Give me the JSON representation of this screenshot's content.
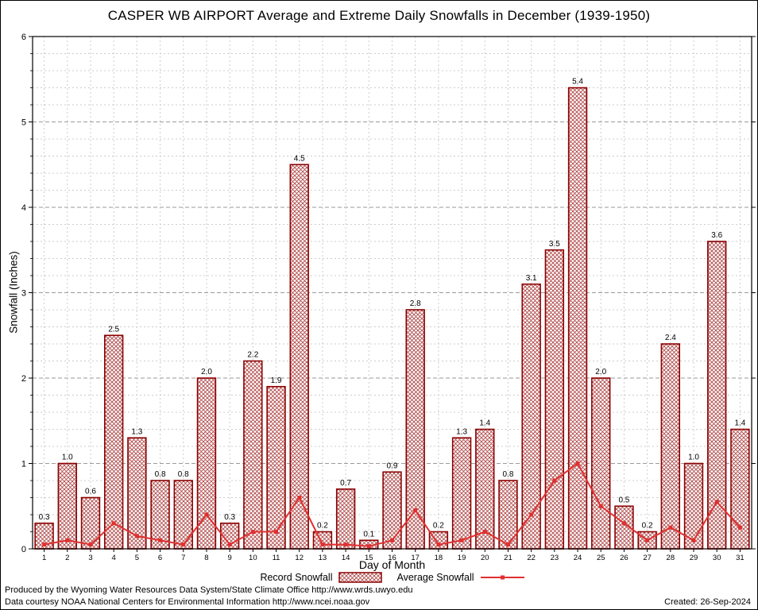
{
  "title": "CASPER WB AIRPORT Average and Extreme Daily Snowfalls in December (1939-1950)",
  "chart_data": {
    "type": "bar",
    "title": "CASPER WB AIRPORT Average and Extreme Daily Snowfalls in December (1939-1950)",
    "xlabel": "Day of Month",
    "ylabel": "Snowfall (Inches)",
    "ylim": [
      0,
      6
    ],
    "y_major_ticks": [
      0,
      1,
      2,
      3,
      4,
      5,
      6
    ],
    "y_minor_step": 0.2,
    "grid": "on",
    "legend_position": "bottom",
    "categories": [
      1,
      2,
      3,
      4,
      5,
      6,
      7,
      8,
      9,
      10,
      11,
      12,
      13,
      14,
      15,
      16,
      17,
      18,
      19,
      20,
      21,
      22,
      23,
      24,
      25,
      26,
      27,
      28,
      29,
      30,
      31
    ],
    "series": [
      {
        "name": "Record Snowfall",
        "type": "bar",
        "values": [
          0.3,
          1.0,
          0.6,
          2.5,
          1.3,
          0.8,
          0.8,
          2.0,
          0.3,
          2.2,
          1.9,
          4.5,
          0.2,
          0.7,
          0.1,
          0.9,
          2.8,
          0.2,
          1.3,
          1.4,
          0.8,
          3.1,
          3.5,
          5.4,
          2.0,
          0.5,
          0.2,
          2.4,
          1.0,
          3.6,
          1.4
        ]
      },
      {
        "name": "Average Snowfall",
        "type": "line",
        "values": [
          0.05,
          0.1,
          0.05,
          0.3,
          0.15,
          0.1,
          0.05,
          0.4,
          0.05,
          0.2,
          0.2,
          0.6,
          0.05,
          0.05,
          0.03,
          0.1,
          0.45,
          0.05,
          0.1,
          0.2,
          0.05,
          0.4,
          0.8,
          1.0,
          0.5,
          0.3,
          0.1,
          0.25,
          0.1,
          0.55,
          0.25
        ]
      }
    ],
    "colors": {
      "bar_edge": "#8b0000",
      "bar_hatch": "#b04848",
      "line": "#e03030",
      "grid_minor": "#cccccc",
      "grid_major": "#9a9a9a"
    }
  },
  "legend": {
    "record_label": "Record Snowfall",
    "average_label": "Average Snowfall"
  },
  "footer": {
    "line1": "Produced by the Wyoming Water Resources Data System/State Climate Office http://www.wrds.uwyo.edu",
    "line2": "Data courtesy NOAA National Centers for Environmental Information http://www.ncei.noaa.gov",
    "created": "Created: 26-Sep-2024"
  }
}
